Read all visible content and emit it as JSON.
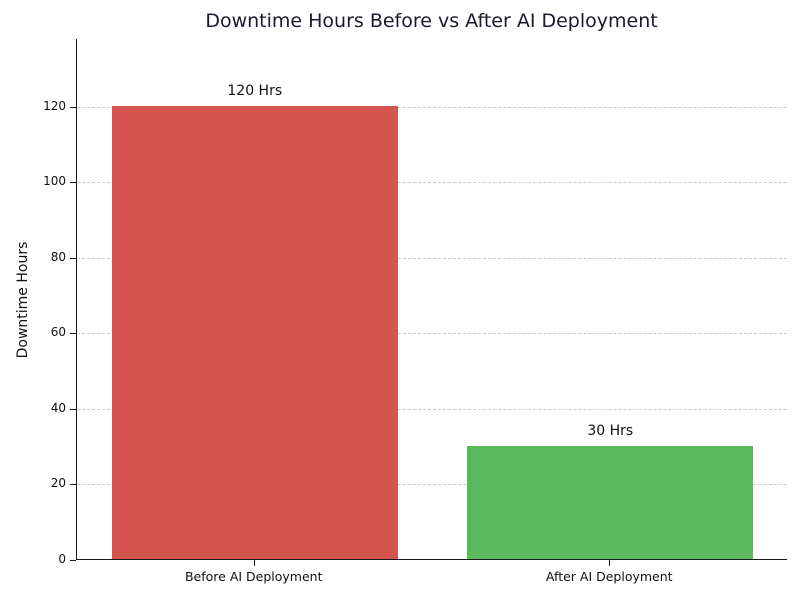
{
  "chart_data": {
    "type": "bar",
    "title": "Downtime Hours Before vs After AI Deployment",
    "xlabel": "",
    "ylabel": "Downtime Hours",
    "categories": [
      "Before AI Deployment",
      "After AI Deployment"
    ],
    "values": [
      120,
      30
    ],
    "value_labels": [
      "120 Hrs",
      "30 Hrs"
    ],
    "bar_colors": [
      "#d5544f",
      "#5cb85c"
    ],
    "yticks": [
      "0",
      "20",
      "40",
      "60",
      "80",
      "100",
      "120"
    ],
    "ytick_values": [
      0,
      20,
      40,
      60,
      80,
      100,
      120
    ],
    "ylim": [
      0,
      138
    ],
    "grid": "horizontal-dashed",
    "grid_color": "#c9c9c9",
    "title_color": "#1a1a2e",
    "axis_color": "#1a1a1a",
    "legend": "none"
  }
}
